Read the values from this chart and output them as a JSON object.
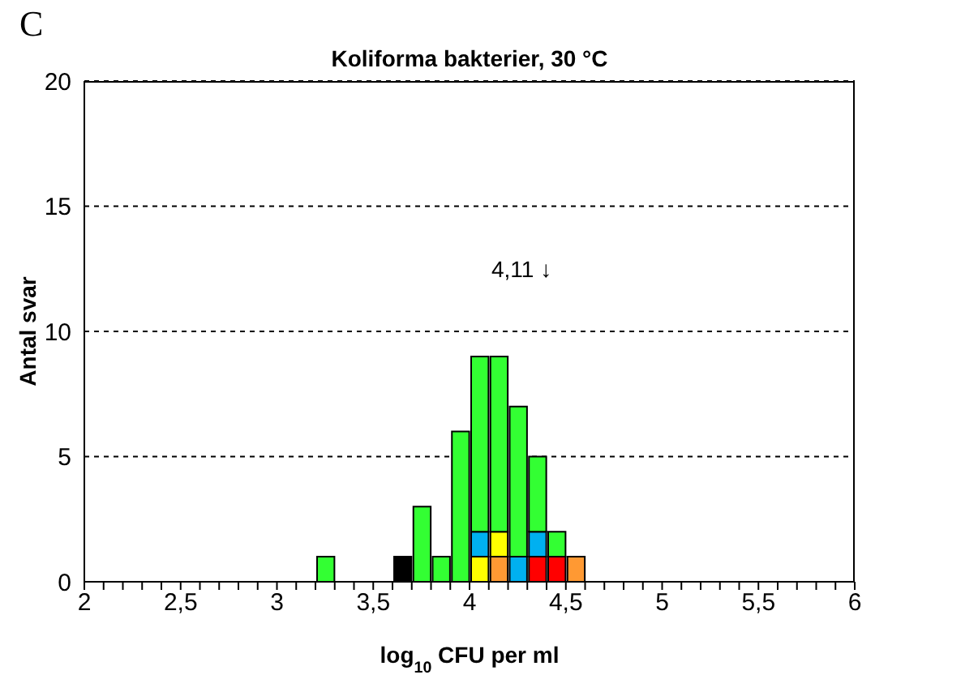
{
  "chart_data": {
    "type": "bar",
    "title": "Koliforma bakterier, 30 °C",
    "xlabel": "log$_{10}$ CFU per ml",
    "ylabel": "Antal svar",
    "annotations": [
      "C",
      "4,11 ↓"
    ],
    "x": [
      3.25,
      3.65,
      3.75,
      3.85,
      3.95,
      4.05,
      4.15,
      4.25,
      4.35,
      4.45,
      4.55
    ],
    "stacked": true,
    "series": [
      {
        "color": "#000000",
        "values": [
          null,
          1,
          null,
          null,
          null,
          null,
          null,
          null,
          null,
          null,
          null
        ]
      },
      {
        "color": "#ff0000",
        "values": [
          null,
          null,
          null,
          null,
          null,
          null,
          null,
          null,
          1,
          1,
          null
        ]
      },
      {
        "color": "#ff9933",
        "values": [
          null,
          null,
          null,
          null,
          null,
          null,
          1,
          null,
          null,
          null,
          1
        ]
      },
      {
        "color": "#ffff00",
        "values": [
          null,
          null,
          null,
          null,
          null,
          1,
          1,
          null,
          null,
          null,
          null
        ]
      },
      {
        "color": "#00b0f0",
        "values": [
          null,
          null,
          null,
          null,
          null,
          1,
          null,
          1,
          1,
          null,
          null
        ]
      },
      {
        "color": "#33ff33",
        "values": [
          1,
          null,
          3,
          1,
          6,
          7,
          7,
          6,
          3,
          1,
          null
        ]
      }
    ],
    "xlim": [
      2,
      6
    ],
    "xticks": [
      2,
      {
        "value": 2.1,
        "label": null
      },
      {
        "value": 2.2,
        "label": null
      },
      {
        "value": 2.3,
        "label": null
      },
      {
        "value": 2.4,
        "label": null
      },
      {
        "value": 2.5,
        "label": "2,5"
      },
      {
        "value": 2.6,
        "label": null
      },
      {
        "value": 2.7,
        "label": null
      },
      {
        "value": 2.8,
        "label": null
      },
      {
        "value": 2.9,
        "label": null
      },
      3,
      {
        "value": 3.1,
        "label": null
      },
      {
        "value": 3.2,
        "label": null
      },
      {
        "value": 3.3,
        "label": null
      },
      {
        "value": 3.4,
        "label": null
      },
      {
        "value": 3.5,
        "label": "3,5"
      },
      {
        "value": 3.6,
        "label": null
      },
      {
        "value": 3.7,
        "label": null
      },
      {
        "value": 3.8,
        "label": null
      },
      {
        "value": 3.9,
        "label": null
      },
      4,
      {
        "value": 4.1,
        "label": null
      },
      {
        "value": 4.2,
        "label": null
      },
      {
        "value": 4.3,
        "label": null
      },
      {
        "value": 4.4,
        "label": null
      },
      {
        "value": 4.5,
        "label": "4,5"
      },
      {
        "value": 4.6,
        "label": null
      },
      {
        "value": 4.7,
        "label": null
      },
      {
        "value": 4.8,
        "label": null
      },
      {
        "value": 4.9,
        "label": null
      },
      5,
      {
        "value": 5.1,
        "label": null
      },
      {
        "value": 5.2,
        "label": null
      },
      {
        "value": 5.3,
        "label": null
      },
      {
        "value": 5.4,
        "label": null
      },
      {
        "value": 5.5,
        "label": "5,5"
      },
      {
        "value": 5.6,
        "label": null
      },
      {
        "value": 5.7,
        "label": null
      },
      {
        "value": 5.8,
        "label": null
      },
      {
        "value": 5.9,
        "label": null
      },
      6
    ],
    "ylim": [
      0,
      20
    ],
    "yticks": [
      0,
      5,
      10,
      15,
      20
    ],
    "grid": "y"
  }
}
